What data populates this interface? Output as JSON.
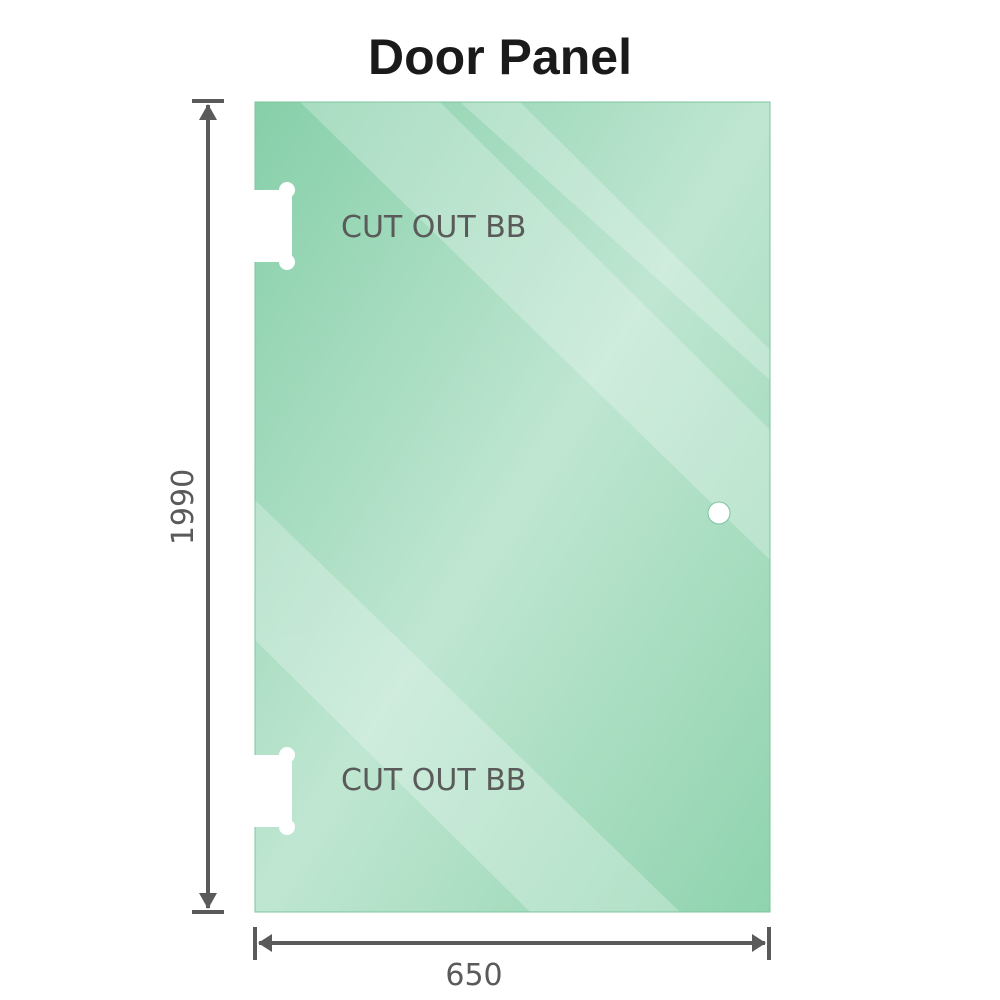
{
  "title": "Door Panel",
  "cutout_labels": [
    "CUT OUT BB",
    "CUT OUT BB"
  ],
  "dimensions": {
    "height": "1990",
    "width": "650"
  },
  "colors": {
    "glass": "#86cfa9",
    "glass_light": "#bde5cf",
    "dimension_line": "#5a5a5a"
  }
}
